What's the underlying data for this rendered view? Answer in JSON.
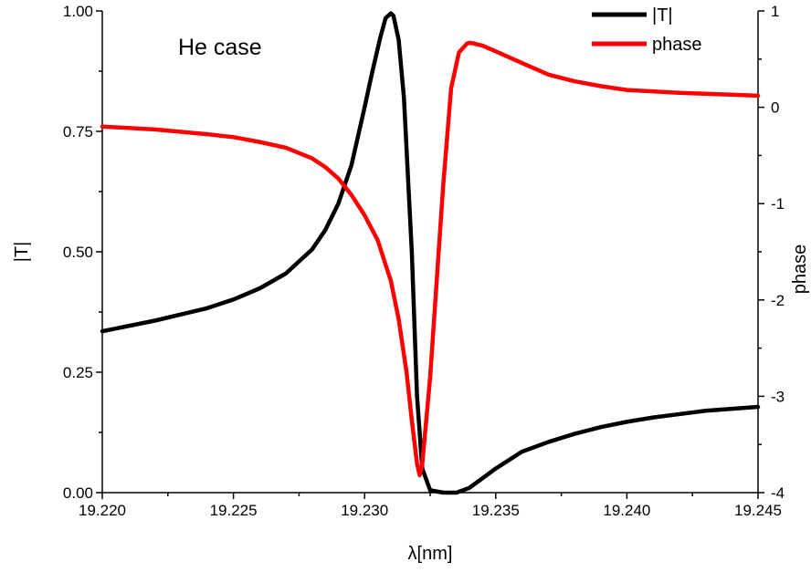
{
  "chart_data": {
    "type": "line",
    "annotation": "He case",
    "xlabel": "λ[nm]",
    "ylabel_left": "|T|",
    "ylabel_right": "phase",
    "xlim": [
      19.22,
      19.245
    ],
    "ylim_left": [
      0,
      1
    ],
    "ylim_right": [
      -4,
      1
    ],
    "x_ticks": [
      "19.220",
      "19.225",
      "19.230",
      "19.235",
      "19.240",
      "19.245"
    ],
    "x_tick_values": [
      19.22,
      19.225,
      19.23,
      19.235,
      19.24,
      19.245
    ],
    "y_left_ticks": [
      "0.00",
      "0.25",
      "0.50",
      "0.75",
      "1.00"
    ],
    "y_left_tick_values": [
      0,
      0.25,
      0.5,
      0.75,
      1.0
    ],
    "y_right_ticks": [
      "-4",
      "-3",
      "-2",
      "-1",
      "0",
      "1"
    ],
    "y_right_tick_values": [
      -4,
      -3,
      -2,
      -1,
      0,
      1
    ],
    "legend_position": "top-right",
    "grid": false,
    "series": [
      {
        "name": "|T|",
        "axis": "left",
        "color": "#000000",
        "x": [
          19.22,
          19.222,
          19.224,
          19.225,
          19.226,
          19.227,
          19.228,
          19.2285,
          19.229,
          19.2295,
          19.23,
          19.2303,
          19.2306,
          19.2308,
          19.231,
          19.2311,
          19.2313,
          19.2315,
          19.2318,
          19.232,
          19.2322,
          19.2325,
          19.233,
          19.2335,
          19.234,
          19.235,
          19.236,
          19.237,
          19.238,
          19.239,
          19.24,
          19.241,
          19.242,
          19.243,
          19.244,
          19.245
        ],
        "y": [
          0.335,
          0.357,
          0.383,
          0.401,
          0.424,
          0.455,
          0.505,
          0.545,
          0.6,
          0.68,
          0.8,
          0.875,
          0.945,
          0.985,
          0.995,
          0.99,
          0.94,
          0.82,
          0.5,
          0.2,
          0.05,
          0.005,
          0.0,
          0.0,
          0.01,
          0.05,
          0.085,
          0.105,
          0.122,
          0.136,
          0.147,
          0.156,
          0.163,
          0.17,
          0.174,
          0.178
        ]
      },
      {
        "name": "phase",
        "axis": "right",
        "color": "#ff0000",
        "x": [
          19.22,
          19.222,
          19.224,
          19.225,
          19.226,
          19.227,
          19.228,
          19.2285,
          19.229,
          19.2295,
          19.23,
          19.2305,
          19.231,
          19.2313,
          19.2316,
          19.2318,
          19.232,
          19.2321,
          19.2322,
          19.2323,
          19.2325,
          19.2327,
          19.233,
          19.2333,
          19.2336,
          19.2339,
          19.234,
          19.2342,
          19.2345,
          19.235,
          19.236,
          19.237,
          19.238,
          19.239,
          19.24,
          19.242,
          19.245
        ],
        "y": [
          -0.2,
          -0.23,
          -0.28,
          -0.31,
          -0.36,
          -0.42,
          -0.53,
          -0.62,
          -0.74,
          -0.91,
          -1.12,
          -1.38,
          -1.8,
          -2.2,
          -2.75,
          -3.25,
          -3.7,
          -3.82,
          -3.7,
          -3.4,
          -2.8,
          -2.0,
          -0.8,
          0.2,
          0.57,
          0.66,
          0.67,
          0.66,
          0.64,
          0.58,
          0.46,
          0.34,
          0.27,
          0.22,
          0.18,
          0.15,
          0.12
        ]
      }
    ]
  }
}
